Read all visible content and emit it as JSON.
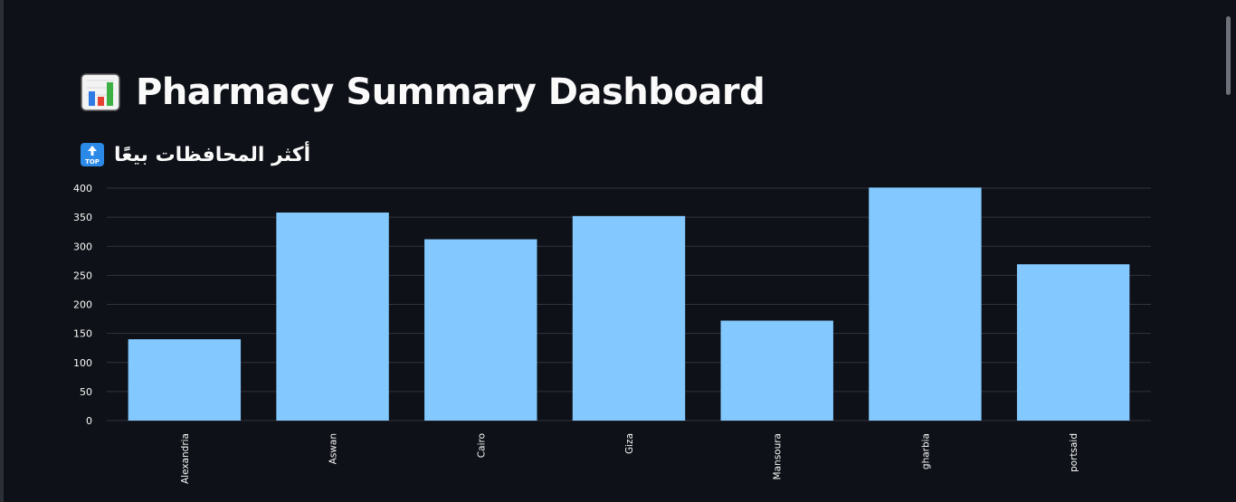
{
  "header": {
    "title": "Pharmacy Summary Dashboard",
    "title_icon": "bar-chart-emoji"
  },
  "section": {
    "title": "أكثر المحافظات بيعًا",
    "icon": "top-arrow-emoji"
  },
  "colors": {
    "background": "#0e1117",
    "bar": "#83c9ff",
    "grid": "#31333f",
    "text": "#fafafa"
  },
  "chart_data": {
    "type": "bar",
    "categories": [
      "Alexandria",
      "Aswan",
      "Cairo",
      "Giza",
      "Mansoura",
      "gharbia",
      "portsaid"
    ],
    "values": [
      140,
      358,
      312,
      352,
      172,
      401,
      269
    ],
    "title": "",
    "xlabel": "",
    "ylabel": "",
    "ylim": [
      0,
      400
    ],
    "yticks": [
      0,
      50,
      100,
      150,
      200,
      250,
      300,
      350,
      400
    ],
    "grid": true,
    "legend": "none"
  }
}
